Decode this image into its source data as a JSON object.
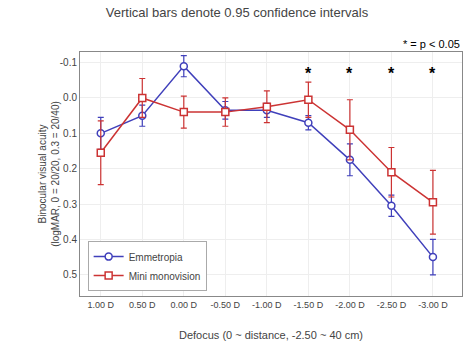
{
  "chart_data": {
    "type": "line",
    "title": "Vertical bars denote 0.95 confidence intervals",
    "xlabel": "Defocus (0 ~ distance, -2.50 ~ 40 cm)",
    "ylabel": "Binocular visual acuity\n(logMAR, 0 = 20/20, 0.3 = 20/40)",
    "x": [
      1.0,
      0.5,
      0.0,
      -0.5,
      -1.0,
      -1.5,
      -2.0,
      -2.5,
      -3.0
    ],
    "xlim": [
      1.25,
      -3.35
    ],
    "xticks": [
      {
        "value": 1.0,
        "label": "1.00 D"
      },
      {
        "value": 0.5,
        "label": "0.50 D"
      },
      {
        "value": 0.0,
        "label": "0.00 D"
      },
      {
        "value": -0.5,
        "label": "-0.50 D"
      },
      {
        "value": -1.0,
        "label": "-1.00 D"
      },
      {
        "value": -1.5,
        "label": "-1.50 D"
      },
      {
        "value": -2.0,
        "label": "-2.00 D"
      },
      {
        "value": -2.5,
        "label": "-2.50 D"
      },
      {
        "value": -3.0,
        "label": "-3.00 D"
      }
    ],
    "ylim": [
      0.56,
      -0.13
    ],
    "yticks": [
      -0.1,
      {
        "value": 0.0,
        "label": "0.0"
      },
      0.1,
      0.2,
      0.3,
      0.4,
      0.5
    ],
    "grid": true,
    "legend": "lower left",
    "annotations": [
      {
        "text": "* = p < 0.05"
      },
      {
        "x": -1.5,
        "y": -0.07,
        "text": "*"
      },
      {
        "x": -2.0,
        "y": -0.07,
        "text": "*"
      },
      {
        "x": -2.5,
        "y": -0.07,
        "text": "*"
      },
      {
        "x": -3.0,
        "y": -0.07,
        "text": "*"
      }
    ],
    "series": [
      {
        "name": "Emmetropia",
        "color": "#4040bb",
        "marker": "circle",
        "line_style": "solid",
        "values": [
          0.1,
          0.05,
          -0.09,
          0.035,
          0.035,
          0.07,
          0.175,
          0.305,
          0.45
        ],
        "err_minus": [
          0.045,
          0.03,
          0.03,
          0.025,
          0.02,
          0.02,
          0.045,
          0.03,
          0.05
        ],
        "err_plus": [
          0.045,
          0.03,
          0.03,
          0.025,
          0.02,
          0.02,
          0.045,
          0.03,
          0.05
        ]
      },
      {
        "name": "Mini monovision",
        "color": "#cc3333",
        "marker": "square",
        "line_style": "solid",
        "values": [
          0.155,
          0.0,
          0.04,
          0.04,
          0.025,
          0.005,
          0.09,
          0.21,
          0.295
        ],
        "err_minus": [
          0.09,
          0.055,
          0.045,
          0.04,
          0.045,
          0.05,
          0.085,
          0.07,
          0.09
        ],
        "err_plus": [
          0.09,
          0.055,
          0.045,
          0.04,
          0.045,
          0.05,
          0.085,
          0.07,
          0.09
        ]
      }
    ]
  }
}
